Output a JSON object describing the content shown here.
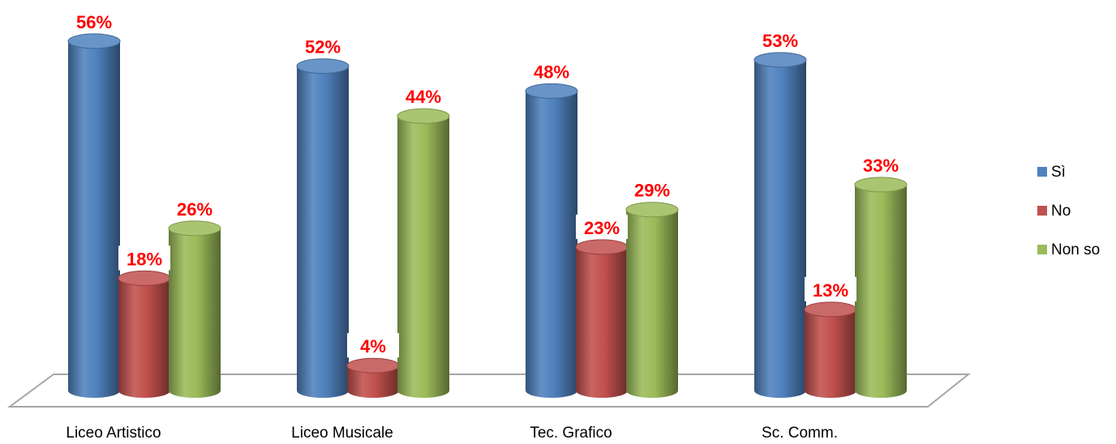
{
  "chart_data": {
    "type": "bar",
    "style": "3d-cylinder",
    "categories": [
      "Liceo Artistico",
      "Liceo Musicale",
      "Tec.  Grafico",
      "Sc. Comm."
    ],
    "series": [
      {
        "name": "Sì",
        "color": "#4f81bd",
        "values": [
          56,
          52,
          48,
          53
        ],
        "labels": [
          "56%",
          "52%",
          "48%",
          "53%"
        ]
      },
      {
        "name": "No",
        "color": "#c0504d",
        "values": [
          18,
          4,
          23,
          13
        ],
        "labels": [
          "18%",
          "4%",
          "23%",
          "13%"
        ]
      },
      {
        "name": "Non so",
        "color": "#9bbb59",
        "values": [
          26,
          44,
          29,
          33
        ],
        "labels": [
          "26%",
          "44%",
          "29%",
          "33%"
        ]
      }
    ],
    "data_label_color": "#ff0000",
    "ylim": [
      0,
      60
    ],
    "grid": false,
    "legend_position": "right"
  }
}
